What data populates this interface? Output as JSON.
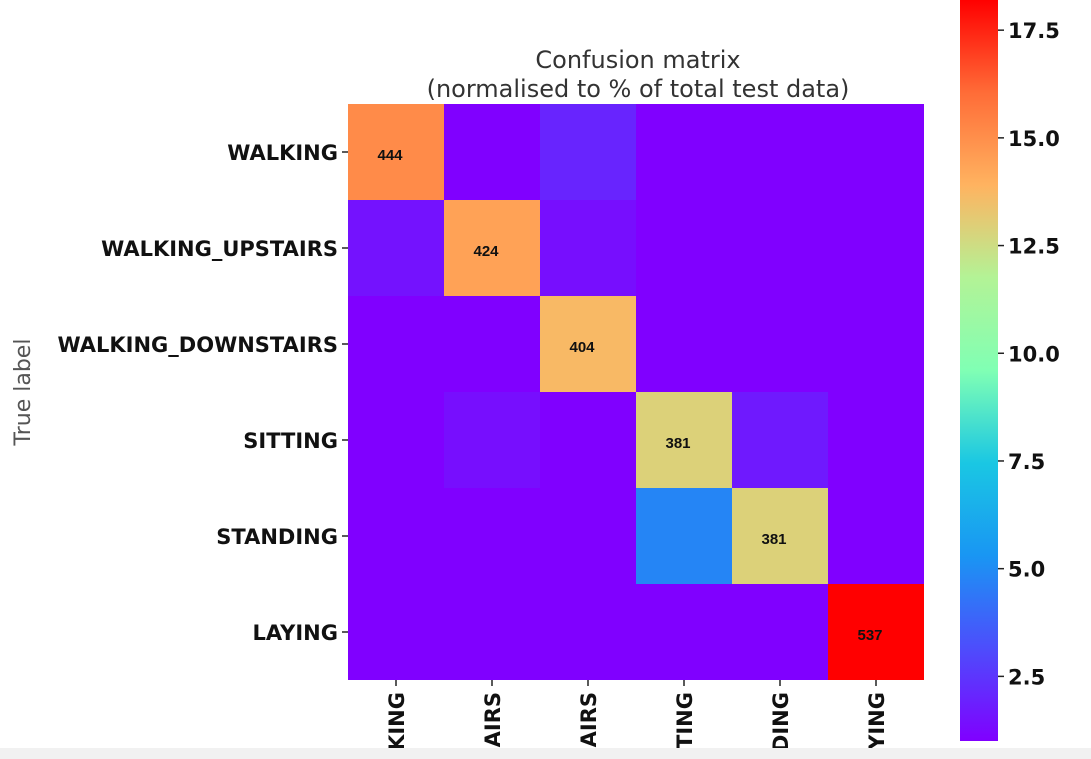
{
  "chart_data": {
    "type": "heatmap",
    "title": "Confusion matrix",
    "subtitle": "(normalised to % of total test data)",
    "ylabel": "True label",
    "xlabel": "",
    "row_labels": [
      "WALKING",
      "WALKING_UPSTAIRS",
      "WALKING_DOWNSTAIRS",
      "SITTING",
      "STANDING",
      "LAYING"
    ],
    "col_labels": [
      "KING",
      "AIRS",
      "AIRS",
      "TING",
      "DING",
      "YING"
    ],
    "values_percent": [
      [
        15.1,
        0.5,
        2.0,
        0.0,
        0.0,
        0.0
      ],
      [
        1.5,
        14.4,
        1.4,
        0.0,
        0.0,
        0.0
      ],
      [
        0.3,
        0.8,
        13.7,
        0.0,
        0.0,
        0.0
      ],
      [
        0.1,
        1.4,
        0.0,
        12.9,
        1.7,
        0.0
      ],
      [
        0.0,
        0.1,
        0.0,
        4.8,
        12.9,
        0.0
      ],
      [
        0.0,
        0.0,
        0.0,
        0.0,
        0.0,
        18.2
      ]
    ],
    "annotations": [
      {
        "row": 0,
        "col": 0,
        "text": "444"
      },
      {
        "row": 1,
        "col": 1,
        "text": "424"
      },
      {
        "row": 2,
        "col": 2,
        "text": "404"
      },
      {
        "row": 3,
        "col": 3,
        "text": "381"
      },
      {
        "row": 4,
        "col": 4,
        "text": "381"
      },
      {
        "row": 5,
        "col": 5,
        "text": "537"
      }
    ],
    "colormap": "rainbow",
    "colorbar": {
      "range": [
        1.0,
        18.2
      ],
      "ticks": [
        2.5,
        5.0,
        7.5,
        10.0,
        12.5,
        15.0,
        17.5
      ],
      "tick_labels": [
        "2.5",
        "5.0",
        "7.5",
        "10.0",
        "12.5",
        "15.0",
        "17.5"
      ]
    }
  }
}
